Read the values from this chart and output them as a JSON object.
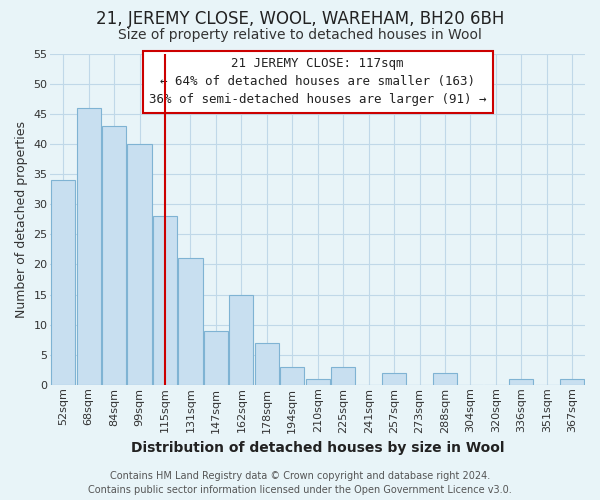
{
  "title": "21, JEREMY CLOSE, WOOL, WAREHAM, BH20 6BH",
  "subtitle": "Size of property relative to detached houses in Wool",
  "xlabel": "Distribution of detached houses by size in Wool",
  "ylabel": "Number of detached properties",
  "bar_color": "#c8dff0",
  "bar_edge_color": "#7fb3d3",
  "highlight_line_color": "#cc0000",
  "categories": [
    "52sqm",
    "68sqm",
    "84sqm",
    "99sqm",
    "115sqm",
    "131sqm",
    "147sqm",
    "162sqm",
    "178sqm",
    "194sqm",
    "210sqm",
    "225sqm",
    "241sqm",
    "257sqm",
    "273sqm",
    "288sqm",
    "304sqm",
    "320sqm",
    "336sqm",
    "351sqm",
    "367sqm"
  ],
  "values": [
    34,
    46,
    43,
    40,
    28,
    21,
    9,
    15,
    7,
    3,
    1,
    3,
    0,
    2,
    0,
    2,
    0,
    0,
    1,
    0,
    1
  ],
  "ylim": [
    0,
    55
  ],
  "yticks": [
    0,
    5,
    10,
    15,
    20,
    25,
    30,
    35,
    40,
    45,
    50,
    55
  ],
  "annotation_title": "21 JEREMY CLOSE: 117sqm",
  "annotation_line1": "← 64% of detached houses are smaller (163)",
  "annotation_line2": "36% of semi-detached houses are larger (91) →",
  "annotation_box_color": "#ffffff",
  "annotation_box_edge_color": "#cc0000",
  "footer_line1": "Contains HM Land Registry data © Crown copyright and database right 2024.",
  "footer_line2": "Contains public sector information licensed under the Open Government Licence v3.0.",
  "background_color": "#e8f4f8",
  "plot_bg_color": "#e8f4f8",
  "grid_color": "#c0d8e8",
  "title_fontsize": 12,
  "subtitle_fontsize": 10,
  "xlabel_fontsize": 10,
  "ylabel_fontsize": 9,
  "tick_fontsize": 8,
  "annotation_fontsize": 9,
  "footer_fontsize": 7,
  "highlight_line_xindex": 4
}
